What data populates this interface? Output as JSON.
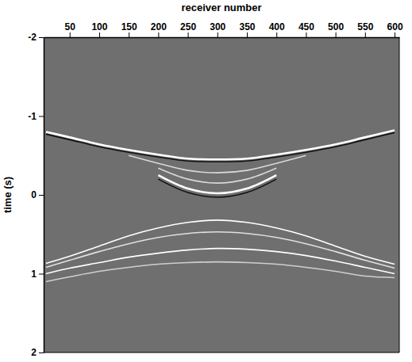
{
  "chart_data": {
    "type": "line",
    "x_label": "receiver number",
    "y_label": "time (s)",
    "x": [
      10,
      50,
      100,
      150,
      200,
      250,
      300,
      350,
      400,
      450,
      500,
      550,
      600
    ],
    "xlim": [
      6,
      608
    ],
    "xticks": [
      50,
      100,
      150,
      200,
      250,
      300,
      350,
      400,
      450,
      500,
      550,
      600
    ],
    "ylim": [
      2,
      -2
    ],
    "yticks": [
      -2,
      -1,
      0,
      1,
      2
    ],
    "series": [
      {
        "color": "#ffffff",
        "values": [
          -0.8,
          -0.73,
          -0.64,
          -0.57,
          -0.51,
          -0.46,
          -0.45,
          -0.46,
          -0.51,
          -0.57,
          -0.64,
          -0.73,
          -0.82
        ]
      },
      {
        "color": "#111111",
        "values": [
          -0.77,
          -0.7,
          -0.61,
          -0.54,
          -0.48,
          -0.43,
          -0.42,
          -0.43,
          -0.48,
          -0.54,
          -0.61,
          -0.7,
          -0.79
        ]
      },
      {
        "color": "#d8d8d8",
        "values": [
          null,
          null,
          null,
          -0.5,
          -0.4,
          -0.31,
          -0.28,
          -0.31,
          -0.4,
          -0.5,
          null,
          null,
          null
        ]
      },
      {
        "color": "#d8d8d8",
        "values": [
          null,
          null,
          null,
          null,
          -0.34,
          -0.2,
          -0.15,
          -0.2,
          -0.34,
          null,
          null,
          null,
          null
        ]
      },
      {
        "color": "#ffffff",
        "values": [
          null,
          null,
          null,
          null,
          -0.25,
          -0.08,
          -0.02,
          -0.08,
          -0.25,
          null,
          null,
          null,
          null
        ]
      },
      {
        "color": "#111111",
        "values": [
          null,
          null,
          null,
          null,
          -0.2,
          -0.03,
          0.03,
          -0.03,
          -0.2,
          null,
          null,
          null,
          null
        ]
      },
      {
        "color": "#ffffff",
        "values": [
          0.87,
          0.78,
          0.65,
          0.52,
          0.42,
          0.35,
          0.32,
          0.35,
          0.42,
          0.52,
          0.65,
          0.78,
          0.88
        ]
      },
      {
        "color": "#e0e0e0",
        "values": [
          0.92,
          0.83,
          0.72,
          0.62,
          0.54,
          0.49,
          0.47,
          0.49,
          0.54,
          0.62,
          0.72,
          0.83,
          0.93
        ]
      },
      {
        "color": "#ffffff",
        "values": [
          1.0,
          0.93,
          0.86,
          0.79,
          0.74,
          0.7,
          0.68,
          0.69,
          0.72,
          0.77,
          0.84,
          0.92,
          1.0
        ]
      },
      {
        "color": "#cfcfcf",
        "values": [
          1.1,
          1.04,
          0.97,
          0.92,
          0.88,
          0.86,
          0.85,
          0.86,
          0.88,
          0.92,
          0.97,
          1.03,
          1.05
        ]
      }
    ]
  }
}
